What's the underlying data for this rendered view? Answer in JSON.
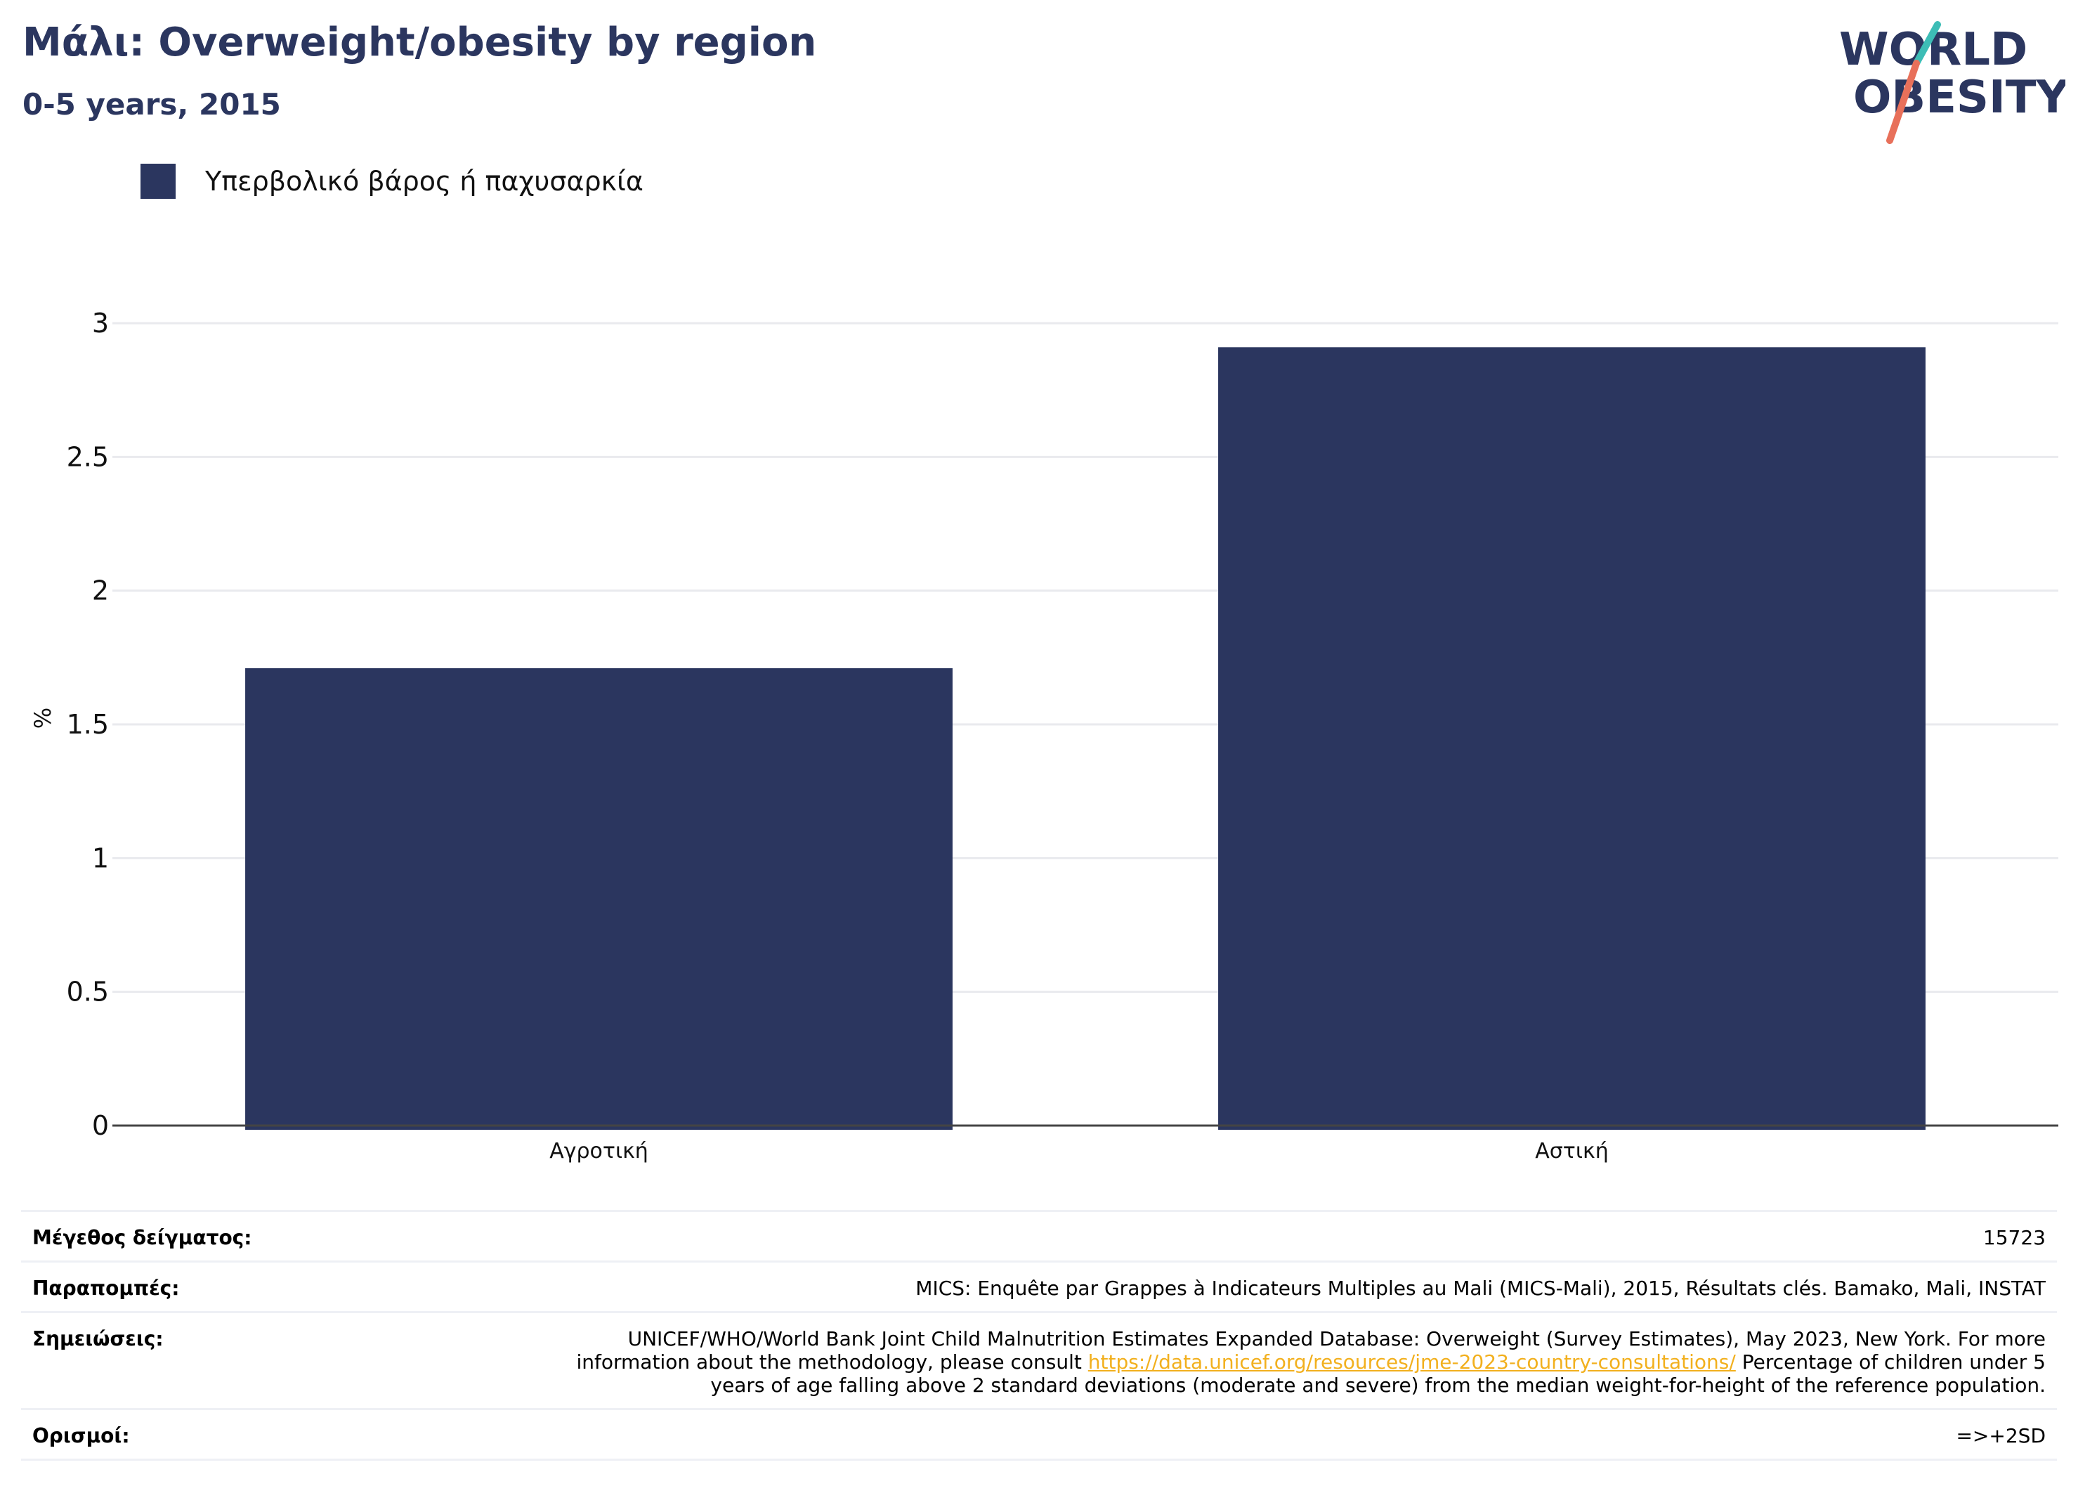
{
  "header": {
    "title": "Μάλι: Overweight/obesity by region",
    "subtitle": "0-5 years, 2015"
  },
  "logo": {
    "line1": "WORLD",
    "line2": "OBESITY"
  },
  "legend": {
    "label": "Υπερβολικό βάρος ή παχυσαρκία",
    "color": "#2b365f"
  },
  "chart_data": {
    "type": "bar",
    "categories": [
      "Αγροτική",
      "Αστική"
    ],
    "series": [
      {
        "name": "Υπερβολικό βάρος ή παχυσαρκία",
        "values": [
          1.71,
          2.91
        ]
      }
    ],
    "ylabel": "%",
    "xlabel": "",
    "ylim": [
      0,
      3
    ],
    "yticks": [
      "0",
      "0.5",
      "1",
      "1.5",
      "2",
      "2.5",
      "3"
    ],
    "grid": true,
    "bar_color": "#2b365f"
  },
  "meta": {
    "sample_size_label": "Μέγεθος δείγματος:",
    "sample_size_value": "15723",
    "references_label": "Παραπομπές:",
    "references_value": "MICS: Enquête par Grappes à Indicateurs Multiples au Mali (MICS-Mali), 2015, Résultats clés. Bamako, Mali, INSTAT",
    "notes_label": "Σημειώσεις:",
    "notes_value_before": "UNICEF/WHO/World Bank Joint Child Malnutrition Estimates Expanded Database: Overweight (Survey Estimates), May 2023, New York. For more information about the methodology, please consult",
    "notes_link": "https://data.unicef.org/resources/jme-2023-country-consultations/",
    "notes_value_after": "Percentage of children under 5 years of age falling above 2 standard deviations (moderate and severe) from the median weight-for-height of the reference population.",
    "definitions_label": "Ορισμοί:",
    "definitions_value": "=>+2SD"
  }
}
